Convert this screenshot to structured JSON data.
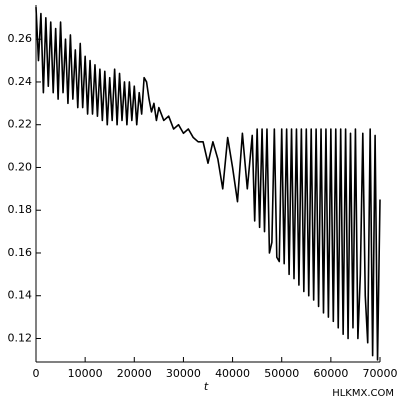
{
  "chart_data": {
    "type": "line",
    "x_label": "t",
    "watermark": "HLKMX.COM",
    "xlim": [
      0,
      70000
    ],
    "xticks": [
      0,
      10000,
      20000,
      30000,
      40000,
      50000,
      60000,
      70000
    ],
    "ylim": [
      0.109,
      0.276
    ],
    "yticks": [
      0.12,
      0.14,
      0.16,
      0.18,
      {
        "value": 0.2,
        "label": "0.20"
      },
      0.22,
      0.24,
      0.26
    ],
    "grid": false,
    "series": [
      {
        "color": "#000000",
        "x": [
          0,
          500,
          1000,
          1500,
          2000,
          2500,
          3000,
          3500,
          4000,
          4500,
          5000,
          5500,
          6000,
          6500,
          7000,
          7500,
          8000,
          8500,
          9000,
          9500,
          10000,
          10500,
          11000,
          11500,
          12000,
          12500,
          13000,
          13500,
          14000,
          14500,
          15000,
          15500,
          16000,
          16500,
          17000,
          17500,
          18000,
          18500,
          19000,
          19500,
          20000,
          20500,
          21000,
          21500,
          22000,
          22500,
          23000,
          23500,
          24000,
          24500,
          25000,
          26000,
          27000,
          28000,
          29000,
          30000,
          31000,
          32000,
          33000,
          34000,
          35000,
          36000,
          37000,
          38000,
          39000,
          40000,
          41000,
          42000,
          43000,
          44000,
          44500,
          45000,
          45500,
          46000,
          46500,
          47000,
          47500,
          48000,
          48500,
          49000,
          49500,
          50000,
          50500,
          51000,
          51500,
          52000,
          52500,
          53000,
          53500,
          54000,
          54500,
          55000,
          55500,
          56000,
          56500,
          57000,
          57500,
          58000,
          58500,
          59000,
          59500,
          60000,
          60500,
          61000,
          61500,
          62000,
          62500,
          63000,
          63500,
          64000,
          64500,
          65000,
          65500,
          66000,
          66500,
          67000,
          67500,
          68000,
          68500,
          69000,
          69500,
          70000
        ],
        "values": [
          0.275,
          0.25,
          0.272,
          0.235,
          0.27,
          0.238,
          0.268,
          0.235,
          0.265,
          0.232,
          0.268,
          0.235,
          0.26,
          0.23,
          0.262,
          0.232,
          0.255,
          0.228,
          0.258,
          0.228,
          0.252,
          0.225,
          0.25,
          0.225,
          0.248,
          0.224,
          0.246,
          0.222,
          0.245,
          0.22,
          0.242,
          0.222,
          0.246,
          0.22,
          0.244,
          0.222,
          0.24,
          0.22,
          0.24,
          0.222,
          0.238,
          0.22,
          0.235,
          0.225,
          0.242,
          0.24,
          0.232,
          0.226,
          0.23,
          0.222,
          0.228,
          0.222,
          0.224,
          0.218,
          0.22,
          0.216,
          0.218,
          0.214,
          0.212,
          0.212,
          0.202,
          0.212,
          0.204,
          0.19,
          0.214,
          0.2,
          0.184,
          0.216,
          0.19,
          0.215,
          0.175,
          0.218,
          0.172,
          0.218,
          0.17,
          0.218,
          0.16,
          0.165,
          0.218,
          0.158,
          0.156,
          0.218,
          0.155,
          0.218,
          0.15,
          0.218,
          0.148,
          0.218,
          0.145,
          0.218,
          0.142,
          0.218,
          0.14,
          0.218,
          0.138,
          0.218,
          0.135,
          0.218,
          0.132,
          0.218,
          0.13,
          0.218,
          0.128,
          0.218,
          0.125,
          0.218,
          0.122,
          0.218,
          0.12,
          0.216,
          0.125,
          0.218,
          0.12,
          0.15,
          0.216,
          0.14,
          0.118,
          0.218,
          0.112,
          0.215,
          0.11,
          0.185
        ]
      }
    ]
  }
}
